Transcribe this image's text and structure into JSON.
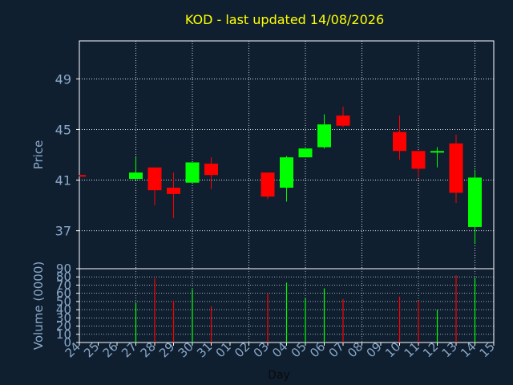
{
  "title": "KOD - last updated 14/08/2026",
  "colors": {
    "background": "#0f1f30",
    "axis": "#ffffff",
    "grid": "#ffffff",
    "label": "#8aa8c8",
    "title": "#ffff00",
    "up": "#00ff00",
    "down": "#ff0000"
  },
  "chart_data": [
    {
      "type": "candlestick",
      "ylabel": "Price",
      "ylim": [
        34,
        52
      ],
      "yticks": [
        37,
        41,
        45,
        49
      ],
      "grid": true,
      "candles": [
        {
          "day": "24",
          "open": 41.4,
          "high": 41.4,
          "low": 41.3,
          "close": 41.3
        },
        {
          "day": "27",
          "open": 41.1,
          "high": 42.8,
          "low": 41.0,
          "close": 41.6
        },
        {
          "day": "28",
          "open": 42.0,
          "high": 42.0,
          "low": 39.0,
          "close": 40.2
        },
        {
          "day": "29",
          "open": 40.4,
          "high": 41.6,
          "low": 38.0,
          "close": 39.9
        },
        {
          "day": "30",
          "open": 40.8,
          "high": 42.4,
          "low": 40.8,
          "close": 42.4
        },
        {
          "day": "31",
          "open": 42.3,
          "high": 42.8,
          "low": 40.3,
          "close": 41.4
        },
        {
          "day": "03",
          "open": 41.6,
          "high": 41.6,
          "low": 39.5,
          "close": 39.7
        },
        {
          "day": "04",
          "open": 40.4,
          "high": 42.9,
          "low": 39.3,
          "close": 42.8
        },
        {
          "day": "05",
          "open": 42.8,
          "high": 43.5,
          "low": 42.8,
          "close": 43.5
        },
        {
          "day": "06",
          "open": 43.6,
          "high": 46.2,
          "low": 43.5,
          "close": 45.4
        },
        {
          "day": "07",
          "open": 46.1,
          "high": 46.8,
          "low": 45.2,
          "close": 45.3
        },
        {
          "day": "10",
          "open": 44.8,
          "high": 46.1,
          "low": 42.6,
          "close": 43.3
        },
        {
          "day": "11",
          "open": 43.3,
          "high": 43.3,
          "low": 41.2,
          "close": 41.9
        },
        {
          "day": "12",
          "open": 43.3,
          "high": 43.6,
          "low": 42.0,
          "close": 43.3
        },
        {
          "day": "13",
          "open": 43.9,
          "high": 44.6,
          "low": 39.2,
          "close": 40.0
        },
        {
          "day": "14",
          "open": 37.3,
          "high": 41.8,
          "low": 36.0,
          "close": 41.2
        }
      ]
    },
    {
      "type": "bar",
      "ylabel": "Volume (0000)",
      "xlabel": "Day",
      "ylim": [
        0,
        90
      ],
      "yticks": [
        0,
        10,
        20,
        30,
        40,
        50,
        60,
        70,
        80,
        90
      ],
      "grid": true,
      "bars": [
        {
          "day": "27",
          "value": 48,
          "color": "up"
        },
        {
          "day": "28",
          "value": 78,
          "color": "down"
        },
        {
          "day": "29",
          "value": 51,
          "color": "down"
        },
        {
          "day": "30",
          "value": 65,
          "color": "up"
        },
        {
          "day": "31",
          "value": 44,
          "color": "down"
        },
        {
          "day": "03",
          "value": 60,
          "color": "down"
        },
        {
          "day": "04",
          "value": 73,
          "color": "up"
        },
        {
          "day": "05",
          "value": 54,
          "color": "up"
        },
        {
          "day": "06",
          "value": 66,
          "color": "up"
        },
        {
          "day": "07",
          "value": 53,
          "color": "down"
        },
        {
          "day": "10",
          "value": 56,
          "color": "down"
        },
        {
          "day": "11",
          "value": 51,
          "color": "down"
        },
        {
          "day": "12",
          "value": 40,
          "color": "up"
        },
        {
          "day": "13",
          "value": 82,
          "color": "down"
        },
        {
          "day": "14",
          "value": 79,
          "color": "up"
        }
      ]
    }
  ],
  "x_days": [
    "24",
    "25",
    "26",
    "27",
    "28",
    "29",
    "30",
    "31",
    "01",
    "02",
    "03",
    "04",
    "05",
    "06",
    "07",
    "08",
    "09",
    "10",
    "11",
    "12",
    "13",
    "14",
    "15"
  ]
}
